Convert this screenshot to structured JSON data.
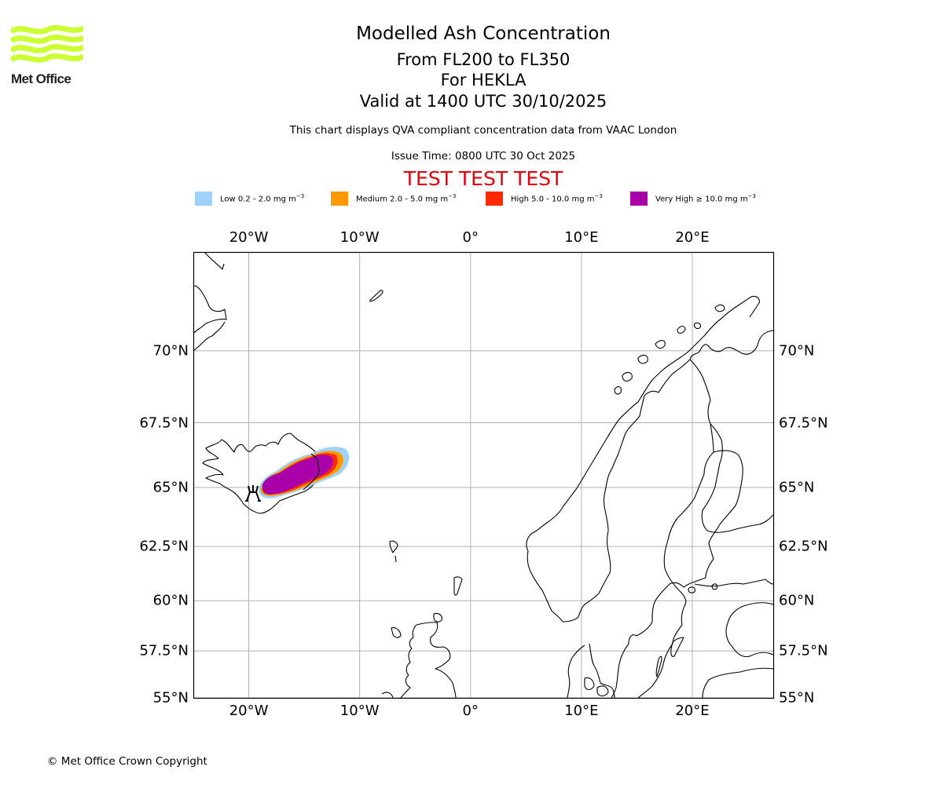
{
  "header": {
    "logo_text": "Met Office",
    "logo_color": "#ccff33",
    "title": "Modelled Ash Concentration",
    "levels": "From FL200 to FL350",
    "volcano": "For HEKLA",
    "valid": "Valid at 1400 UTC 30/10/2025",
    "description": "This chart displays QVA compliant concentration data from VAAC London",
    "issue_time": "Issue Time: 0800 UTC 30 Oct 2025",
    "test_banner": "TEST TEST TEST"
  },
  "legend": [
    {
      "name": "Low",
      "range": "0.2 - 2.0",
      "unit": "mg m",
      "exp": "−3",
      "prefix": "",
      "color": "#a0d2ff"
    },
    {
      "name": "Medium",
      "range": "2.0 - 5.0",
      "unit": "mg m",
      "exp": "−3",
      "prefix": "",
      "color": "#ff9900"
    },
    {
      "name": "High",
      "range": "5.0 - 10.0",
      "unit": "mg m",
      "exp": "−3",
      "prefix": "",
      "color": "#ff2a00"
    },
    {
      "name": "Very High",
      "range": "10.0",
      "unit": "mg m",
      "exp": "−3",
      "prefix": "≥",
      "color": "#aa00aa"
    }
  ],
  "map": {
    "projection": "PlateCarree",
    "lon_range": [
      -25,
      27.3
    ],
    "lat_range": [
      55,
      73
    ],
    "lon_ticks": [
      {
        "value": -20,
        "label": "20°W"
      },
      {
        "value": -10,
        "label": "10°W"
      },
      {
        "value": 0,
        "label": "0°"
      },
      {
        "value": 10,
        "label": "10°E"
      },
      {
        "value": 20,
        "label": "20°E"
      }
    ],
    "lat_ticks": [
      {
        "value": 70,
        "label": "70°N"
      },
      {
        "value": 67.5,
        "label": "67.5°N"
      },
      {
        "value": 65,
        "label": "65°N"
      },
      {
        "value": 62.5,
        "label": "62.5°N"
      },
      {
        "value": 60,
        "label": "60°N"
      },
      {
        "value": 57.5,
        "label": "57.5°N"
      },
      {
        "value": 55,
        "label": "55°N"
      }
    ],
    "gridline_color": "#b0b0b0",
    "volcano": {
      "name": "HEKLA",
      "lon": -19.7,
      "lat": 63.99,
      "symbol": "volcano-icon"
    },
    "ash_cloud": {
      "center_lon": -15.5,
      "center_lat": 64.9,
      "orientation": "WSW-ENE"
    }
  },
  "footer": {
    "copyright": "© Met Office Crown Copyright"
  }
}
